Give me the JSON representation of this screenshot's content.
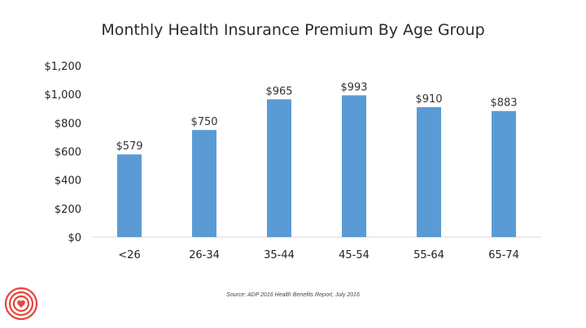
{
  "chart_data": {
    "type": "bar",
    "title": "Monthly Health Insurance Premium By Age Group",
    "categories": [
      "<26",
      "26-34",
      "35-44",
      "45-54",
      "55-64",
      "65-74"
    ],
    "values": [
      579,
      750,
      965,
      993,
      910,
      883
    ],
    "data_labels": [
      "$579",
      "$750",
      "$965",
      "$993",
      "$910",
      "$883"
    ],
    "xlabel": "",
    "ylabel": "",
    "ylim": [
      0,
      1200
    ],
    "y_ticks": [
      0,
      200,
      400,
      600,
      800,
      1000,
      1200
    ],
    "y_tick_labels": [
      "$0",
      "$200",
      "$400",
      "$600",
      "$800",
      "$1,000",
      "$1,200"
    ],
    "grid": false,
    "bar_color": "#5b9bd5"
  },
  "source": "Source: ADP 2016 Health Benefits Report, July 2016",
  "logo": {
    "icon": "heart-rings-icon",
    "color": "#e8443a"
  }
}
